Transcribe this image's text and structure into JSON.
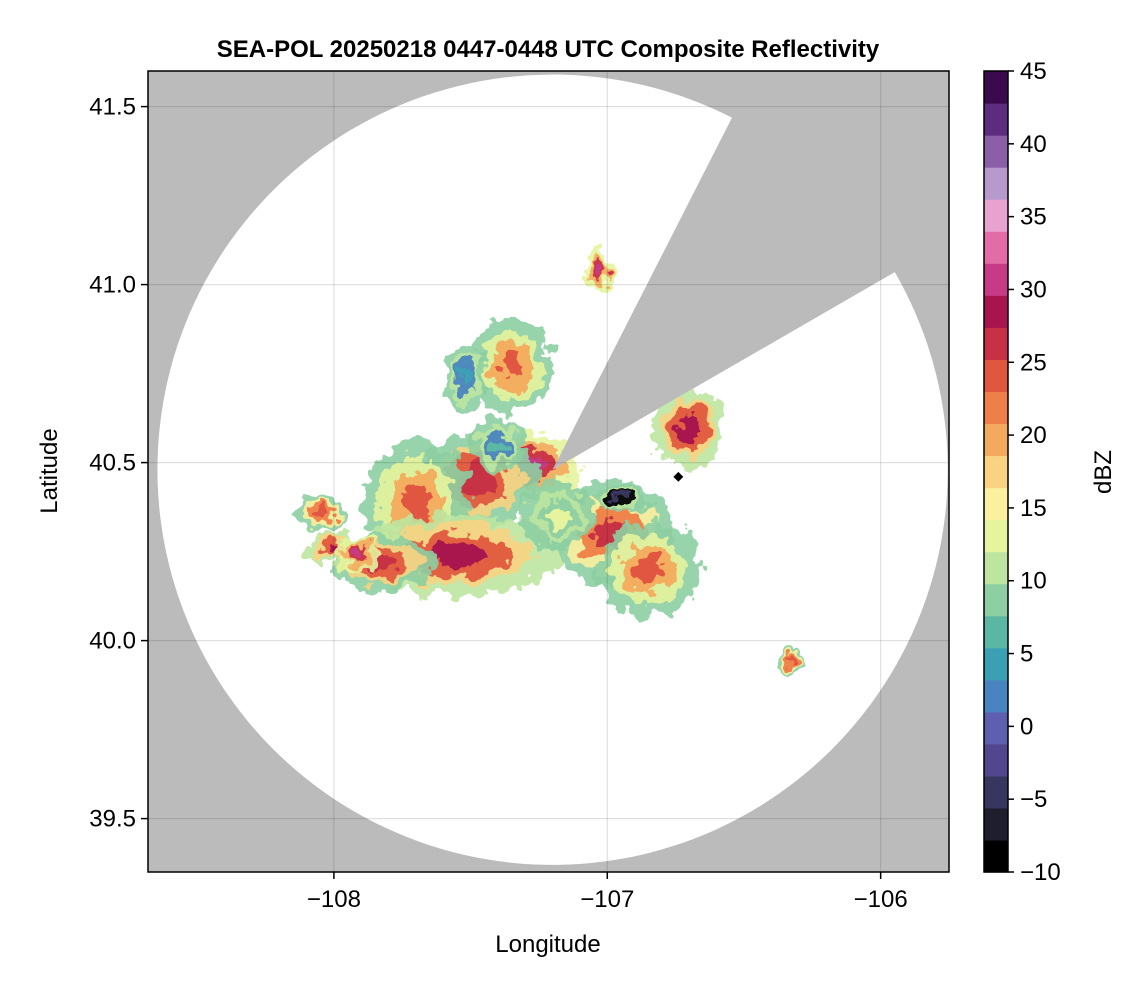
{
  "chart_data": {
    "type": "heatmap",
    "title": "SEA-POL 20250218 0447-0448 UTC Composite Reflectivity",
    "xlabel": "Longitude",
    "ylabel": "Latitude",
    "xlim": [
      -108.68,
      -105.75
    ],
    "ylim": [
      39.35,
      41.6
    ],
    "xticks": [
      -108,
      -107,
      -106
    ],
    "xtick_labels": [
      "−108",
      "−107",
      "−106"
    ],
    "yticks": [
      39.5,
      40.0,
      40.5,
      41.0,
      41.5
    ],
    "ytick_labels": [
      "39.5",
      "40.0",
      "40.5",
      "41.0",
      "41.5"
    ],
    "grid": true,
    "background_color": "#bbbbbb",
    "radar": {
      "center_lon": -107.2,
      "center_lat": 40.48,
      "range_lat_deg": 1.11,
      "blocked_sector_deg": [
        27,
        60
      ]
    },
    "colorbar": {
      "label": "dBZ",
      "range": [
        -10,
        45
      ],
      "ticks": [
        -10,
        -5,
        0,
        5,
        10,
        15,
        20,
        25,
        30,
        35,
        40,
        45
      ],
      "tick_labels": [
        "−10",
        "−5",
        "0",
        "5",
        "10",
        "15",
        "20",
        "25",
        "30",
        "35",
        "40",
        "45"
      ],
      "colormap": [
        "#000000",
        "#1e1e2e",
        "#37365e",
        "#52468f",
        "#5e5fae",
        "#4a84c0",
        "#3ca0b4",
        "#5bb7a4",
        "#8dcfa2",
        "#bde5a0",
        "#e6f49d",
        "#fbf0a0",
        "#f8d382",
        "#f4aa5e",
        "#ee7f48",
        "#e0573f",
        "#c73145",
        "#a8144e",
        "#c73b86",
        "#e36ca6",
        "#e8a2cf",
        "#b899cc",
        "#8b5fa8",
        "#5c2d7e",
        "#3a0a4d"
      ]
    },
    "cells": [
      {
        "lon": -107.28,
        "lat": 40.49,
        "rlon": 0.1,
        "rlat": 0.05,
        "dbz": 30
      },
      {
        "lon": -107.48,
        "lat": 40.45,
        "rlon": 0.12,
        "rlat": 0.07,
        "dbz": 27
      },
      {
        "lon": -107.7,
        "lat": 40.38,
        "rlon": 0.1,
        "rlat": 0.1,
        "dbz": 24
      },
      {
        "lon": -107.55,
        "lat": 40.24,
        "rlon": 0.2,
        "rlat": 0.06,
        "dbz": 28
      },
      {
        "lon": -107.82,
        "lat": 40.22,
        "rlon": 0.1,
        "rlat": 0.04,
        "dbz": 27
      },
      {
        "lon": -106.98,
        "lat": 40.3,
        "rlon": 0.12,
        "rlat": 0.08,
        "dbz": 26
      },
      {
        "lon": -106.85,
        "lat": 40.2,
        "rlon": 0.1,
        "rlat": 0.07,
        "dbz": 24
      },
      {
        "lon": -106.7,
        "lat": 40.6,
        "rlon": 0.07,
        "rlat": 0.06,
        "dbz": 28
      },
      {
        "lon": -107.35,
        "lat": 40.77,
        "rlon": 0.08,
        "rlat": 0.07,
        "dbz": 24
      },
      {
        "lon": -107.52,
        "lat": 40.74,
        "rlon": 0.04,
        "rlat": 0.05,
        "dbz": 5
      },
      {
        "lon": -107.4,
        "lat": 40.55,
        "rlon": 0.05,
        "rlat": 0.04,
        "dbz": 6
      },
      {
        "lon": -106.95,
        "lat": 40.4,
        "rlon": 0.05,
        "rlat": 0.02,
        "dbz": -5
      },
      {
        "lon": -108.05,
        "lat": 40.36,
        "rlon": 0.05,
        "rlat": 0.025,
        "dbz": 25
      },
      {
        "lon": -108.0,
        "lat": 40.26,
        "rlon": 0.05,
        "rlat": 0.025,
        "dbz": 28
      },
      {
        "lon": -107.92,
        "lat": 40.24,
        "rlon": 0.04,
        "rlat": 0.025,
        "dbz": 30
      },
      {
        "lon": -107.03,
        "lat": 41.04,
        "rlon": 0.03,
        "rlat": 0.03,
        "dbz": 30
      },
      {
        "lon": -106.33,
        "lat": 39.94,
        "rlon": 0.03,
        "rlat": 0.02,
        "dbz": 25
      },
      {
        "lon": -107.18,
        "lat": 40.35,
        "rlon": 0.07,
        "rlat": 0.05,
        "dbz": 12
      }
    ],
    "marker": {
      "lon": -106.74,
      "lat": 40.46
    }
  }
}
